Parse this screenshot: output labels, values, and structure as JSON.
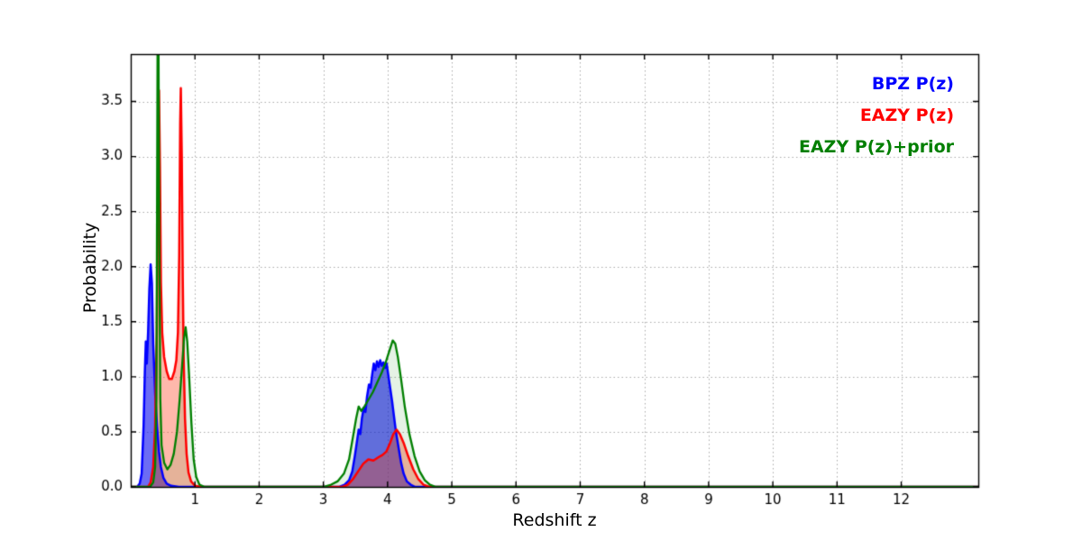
{
  "style": {
    "background": "#ffffff",
    "frame_color": "#000000",
    "grid_color": "#ababab",
    "tick_color": "#000000",
    "text_color": "#000000"
  },
  "chart_data": {
    "type": "line",
    "title": "",
    "xlabel": "Redshift z",
    "ylabel": "Probability",
    "xlim": [
      0,
      13.2
    ],
    "ylim": [
      0,
      3.93
    ],
    "xticks": [
      1,
      2,
      3,
      4,
      5,
      6,
      7,
      8,
      9,
      10,
      11,
      12
    ],
    "xtick_labels": [
      "1",
      "2",
      "3",
      "4",
      "5",
      "6",
      "7",
      "8",
      "9",
      "10",
      "11",
      "12"
    ],
    "yticks": [
      0.0,
      0.5,
      1.0,
      1.5,
      2.0,
      2.5,
      3.0,
      3.5
    ],
    "ytick_labels": [
      "0.0",
      "0.5",
      "1.0",
      "1.5",
      "2.0",
      "2.5",
      "3.0",
      "3.5"
    ],
    "grid": true,
    "legend_position": "top-right",
    "series": [
      {
        "name": "BPZ P(z)",
        "color": "#0000ff",
        "line_width": 2.5,
        "fill": true,
        "fill_color": "#1111ee",
        "fill_alpha": 0.62,
        "points": [
          [
            0,
            0
          ],
          [
            0.1,
            0
          ],
          [
            0.14,
            0.03
          ],
          [
            0.17,
            0.12
          ],
          [
            0.2,
            0.55
          ],
          [
            0.22,
            1.05
          ],
          [
            0.235,
            1.32
          ],
          [
            0.25,
            1.12
          ],
          [
            0.27,
            1.4
          ],
          [
            0.29,
            1.8
          ],
          [
            0.31,
            2.02
          ],
          [
            0.33,
            1.85
          ],
          [
            0.35,
            1.3
          ],
          [
            0.38,
            0.85
          ],
          [
            0.41,
            0.55
          ],
          [
            0.44,
            0.32
          ],
          [
            0.47,
            0.18
          ],
          [
            0.51,
            0.08
          ],
          [
            0.56,
            0.03
          ],
          [
            0.63,
            0.01
          ],
          [
            0.75,
            0
          ],
          [
            3.25,
            0
          ],
          [
            3.33,
            0.02
          ],
          [
            3.4,
            0.06
          ],
          [
            3.45,
            0.14
          ],
          [
            3.49,
            0.28
          ],
          [
            3.52,
            0.4
          ],
          [
            3.55,
            0.52
          ],
          [
            3.575,
            0.48
          ],
          [
            3.6,
            0.62
          ],
          [
            3.63,
            0.72
          ],
          [
            3.655,
            0.68
          ],
          [
            3.68,
            0.82
          ],
          [
            3.71,
            0.93
          ],
          [
            3.735,
            0.9
          ],
          [
            3.76,
            1.02
          ],
          [
            3.785,
            1.12
          ],
          [
            3.81,
            1.06
          ],
          [
            3.835,
            1.14
          ],
          [
            3.86,
            1.09
          ],
          [
            3.885,
            1.15
          ],
          [
            3.91,
            1.1
          ],
          [
            3.935,
            1.13
          ],
          [
            3.96,
            1.08
          ],
          [
            3.985,
            1.12
          ],
          [
            4.01,
            1.02
          ],
          [
            4.04,
            0.9
          ],
          [
            4.07,
            0.78
          ],
          [
            4.1,
            0.64
          ],
          [
            4.13,
            0.5
          ],
          [
            4.17,
            0.36
          ],
          [
            4.21,
            0.22
          ],
          [
            4.25,
            0.12
          ],
          [
            4.3,
            0.05
          ],
          [
            4.36,
            0.02
          ],
          [
            4.43,
            0
          ],
          [
            13.2,
            0
          ]
        ]
      },
      {
        "name": "EAZY P(z)",
        "color": "#ff0000",
        "line_width": 2.5,
        "fill": true,
        "fill_color": "#ff4422",
        "fill_alpha": 0.38,
        "points": [
          [
            0,
            0
          ],
          [
            0.27,
            0
          ],
          [
            0.31,
            0.04
          ],
          [
            0.35,
            0.18
          ],
          [
            0.38,
            0.55
          ],
          [
            0.405,
            1.4
          ],
          [
            0.425,
            2.8
          ],
          [
            0.44,
            3.6
          ],
          [
            0.455,
            2.9
          ],
          [
            0.47,
            1.85
          ],
          [
            0.49,
            1.4
          ],
          [
            0.52,
            1.18
          ],
          [
            0.56,
            1.05
          ],
          [
            0.6,
            0.98
          ],
          [
            0.64,
            0.98
          ],
          [
            0.68,
            1.05
          ],
          [
            0.71,
            1.15
          ],
          [
            0.735,
            1.4
          ],
          [
            0.755,
            2.1
          ],
          [
            0.77,
            3.3
          ],
          [
            0.78,
            3.62
          ],
          [
            0.795,
            3.0
          ],
          [
            0.81,
            1.9
          ],
          [
            0.825,
            1.15
          ],
          [
            0.845,
            0.62
          ],
          [
            0.87,
            0.3
          ],
          [
            0.9,
            0.13
          ],
          [
            0.94,
            0.05
          ],
          [
            1.0,
            0.01
          ],
          [
            1.1,
            0
          ],
          [
            3.3,
            0
          ],
          [
            3.38,
            0.02
          ],
          [
            3.46,
            0.07
          ],
          [
            3.54,
            0.14
          ],
          [
            3.62,
            0.21
          ],
          [
            3.7,
            0.25
          ],
          [
            3.78,
            0.24
          ],
          [
            3.86,
            0.27
          ],
          [
            3.92,
            0.29
          ],
          [
            3.98,
            0.32
          ],
          [
            4.04,
            0.4
          ],
          [
            4.09,
            0.48
          ],
          [
            4.14,
            0.52
          ],
          [
            4.19,
            0.48
          ],
          [
            4.25,
            0.4
          ],
          [
            4.32,
            0.28
          ],
          [
            4.4,
            0.16
          ],
          [
            4.48,
            0.07
          ],
          [
            4.56,
            0.02
          ],
          [
            4.65,
            0
          ],
          [
            13.2,
            0
          ]
        ]
      },
      {
        "name": "EAZY P(z)+prior",
        "color": "#007f00",
        "line_width": 2.3,
        "fill": true,
        "fill_color": "#007f00",
        "fill_alpha": 0.1,
        "points": [
          [
            0,
            0
          ],
          [
            0.3,
            0
          ],
          [
            0.35,
            0.04
          ],
          [
            0.38,
            0.18
          ],
          [
            0.4,
            0.8
          ],
          [
            0.41,
            2.6
          ],
          [
            0.42,
            4.4
          ],
          [
            0.43,
            4.4
          ],
          [
            0.445,
            2.2
          ],
          [
            0.46,
            0.8
          ],
          [
            0.48,
            0.38
          ],
          [
            0.52,
            0.22
          ],
          [
            0.57,
            0.16
          ],
          [
            0.62,
            0.2
          ],
          [
            0.67,
            0.3
          ],
          [
            0.72,
            0.5
          ],
          [
            0.76,
            0.78
          ],
          [
            0.8,
            1.1
          ],
          [
            0.83,
            1.35
          ],
          [
            0.855,
            1.45
          ],
          [
            0.88,
            1.32
          ],
          [
            0.91,
            1.0
          ],
          [
            0.945,
            0.58
          ],
          [
            0.98,
            0.25
          ],
          [
            1.02,
            0.09
          ],
          [
            1.07,
            0.02
          ],
          [
            1.15,
            0
          ],
          [
            3.0,
            0
          ],
          [
            3.12,
            0.02
          ],
          [
            3.22,
            0.05
          ],
          [
            3.32,
            0.12
          ],
          [
            3.4,
            0.25
          ],
          [
            3.46,
            0.45
          ],
          [
            3.51,
            0.62
          ],
          [
            3.55,
            0.73
          ],
          [
            3.59,
            0.69
          ],
          [
            3.64,
            0.73
          ],
          [
            3.7,
            0.79
          ],
          [
            3.77,
            0.86
          ],
          [
            3.84,
            0.95
          ],
          [
            3.91,
            1.04
          ],
          [
            3.97,
            1.13
          ],
          [
            4.03,
            1.24
          ],
          [
            4.08,
            1.33
          ],
          [
            4.12,
            1.3
          ],
          [
            4.16,
            1.18
          ],
          [
            4.21,
            0.98
          ],
          [
            4.27,
            0.72
          ],
          [
            4.34,
            0.48
          ],
          [
            4.42,
            0.28
          ],
          [
            4.5,
            0.14
          ],
          [
            4.58,
            0.06
          ],
          [
            4.66,
            0.02
          ],
          [
            4.75,
            0
          ],
          [
            13.2,
            0
          ]
        ]
      }
    ]
  }
}
